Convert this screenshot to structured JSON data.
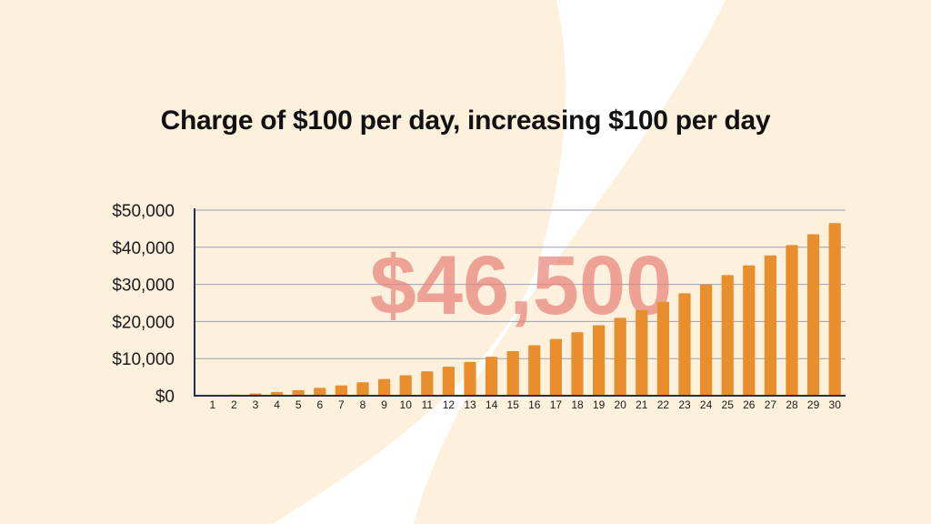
{
  "colors": {
    "background": "#fdf0dc",
    "swoosh": "#ffffff",
    "bar": "#e88e2c",
    "callout": "#e8837a",
    "gridline": "#9a9fb2",
    "axis": "#2a2d52"
  },
  "callout": "$46,500",
  "chart_data": {
    "type": "bar",
    "title": "Charge of $100 per day, increasing $100 per day",
    "xlabel": "",
    "ylabel": "",
    "categories": [
      "1",
      "2",
      "3",
      "4",
      "5",
      "6",
      "7",
      "8",
      "9",
      "10",
      "11",
      "12",
      "13",
      "14",
      "15",
      "16",
      "17",
      "18",
      "19",
      "20",
      "21",
      "22",
      "23",
      "24",
      "25",
      "26",
      "27",
      "28",
      "29",
      "30"
    ],
    "values": [
      100,
      300,
      600,
      1000,
      1500,
      2100,
      2800,
      3600,
      4500,
      5500,
      6600,
      7800,
      9100,
      10500,
      12000,
      13600,
      15300,
      17100,
      19000,
      21000,
      23100,
      25300,
      27600,
      30000,
      32500,
      35100,
      37800,
      40600,
      43500,
      46500
    ],
    "ylim": [
      0,
      50000
    ],
    "yticks": [
      0,
      10000,
      20000,
      30000,
      40000,
      50000
    ],
    "ytick_labels": [
      "$0",
      "$10,000",
      "$20,000",
      "$30,000",
      "$40,000",
      "$50,000"
    ],
    "grid": true,
    "legend": "none"
  }
}
